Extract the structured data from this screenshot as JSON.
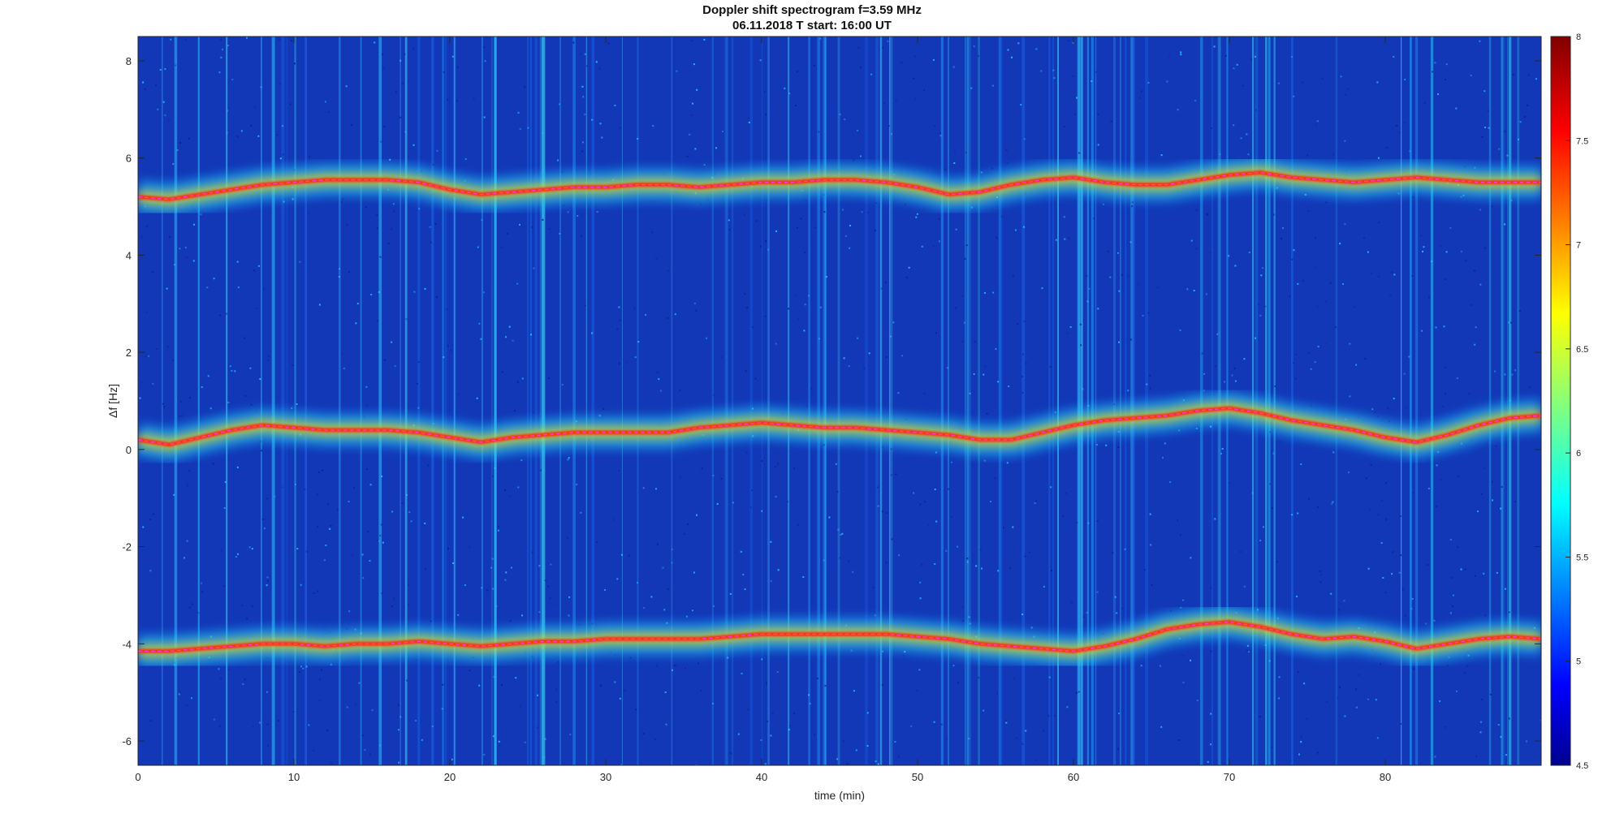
{
  "chart_data": {
    "type": "heatmap",
    "title": "Doppler shift spectrogram f=3.59 MHz",
    "subtitle": "06.11.2018   T start: 16:00 UT",
    "xlabel": "time (min)",
    "ylabel": "Δf [Hz]",
    "xlim": [
      0,
      90
    ],
    "ylim": [
      -6.5,
      8.5
    ],
    "xticks": [
      0,
      10,
      20,
      30,
      40,
      50,
      60,
      70,
      80
    ],
    "yticks": [
      -6,
      -4,
      -2,
      0,
      2,
      4,
      6,
      8
    ],
    "colorbar": {
      "ticks": [
        4.5,
        5,
        5.5,
        6,
        6.5,
        7,
        7.5,
        8
      ],
      "range": [
        4.5,
        8
      ],
      "colormap": "jet",
      "position": "right"
    },
    "background_color": "#1238b8",
    "grid": false,
    "series": [
      {
        "band": "upper",
        "x": [
          0,
          2,
          4,
          6,
          8,
          10,
          12,
          14,
          16,
          18,
          20,
          22,
          24,
          26,
          28,
          30,
          32,
          34,
          36,
          38,
          40,
          42,
          44,
          46,
          48,
          50,
          52,
          54,
          56,
          58,
          60,
          62,
          64,
          66,
          68,
          70,
          72,
          74,
          76,
          78,
          80,
          82,
          84,
          86,
          88,
          90
        ],
        "y": [
          5.2,
          5.15,
          5.25,
          5.35,
          5.45,
          5.5,
          5.55,
          5.55,
          5.55,
          5.5,
          5.35,
          5.25,
          5.3,
          5.35,
          5.4,
          5.4,
          5.45,
          5.45,
          5.4,
          5.45,
          5.5,
          5.5,
          5.55,
          5.55,
          5.5,
          5.4,
          5.25,
          5.3,
          5.45,
          5.55,
          5.6,
          5.5,
          5.45,
          5.45,
          5.55,
          5.65,
          5.7,
          5.6,
          5.55,
          5.5,
          5.55,
          5.6,
          5.55,
          5.5,
          5.5,
          5.5
        ]
      },
      {
        "band": "middle",
        "x": [
          0,
          2,
          4,
          6,
          8,
          10,
          12,
          14,
          16,
          18,
          20,
          22,
          24,
          26,
          28,
          30,
          32,
          34,
          36,
          38,
          40,
          42,
          44,
          46,
          48,
          50,
          52,
          54,
          56,
          58,
          60,
          62,
          64,
          66,
          68,
          70,
          72,
          74,
          76,
          78,
          80,
          82,
          84,
          86,
          88,
          90
        ],
        "y": [
          0.2,
          0.1,
          0.25,
          0.4,
          0.5,
          0.45,
          0.4,
          0.4,
          0.4,
          0.35,
          0.25,
          0.15,
          0.25,
          0.3,
          0.35,
          0.35,
          0.35,
          0.35,
          0.45,
          0.5,
          0.55,
          0.5,
          0.45,
          0.45,
          0.4,
          0.35,
          0.3,
          0.2,
          0.2,
          0.35,
          0.5,
          0.6,
          0.65,
          0.7,
          0.8,
          0.85,
          0.75,
          0.6,
          0.5,
          0.4,
          0.25,
          0.15,
          0.3,
          0.5,
          0.65,
          0.7
        ]
      },
      {
        "band": "lower",
        "x": [
          0,
          2,
          4,
          6,
          8,
          10,
          12,
          14,
          16,
          18,
          20,
          22,
          24,
          26,
          28,
          30,
          32,
          34,
          36,
          38,
          40,
          42,
          44,
          46,
          48,
          50,
          52,
          54,
          56,
          58,
          60,
          62,
          64,
          66,
          68,
          70,
          72,
          74,
          76,
          78,
          80,
          82,
          84,
          86,
          88,
          90
        ],
        "y": [
          -4.15,
          -4.15,
          -4.1,
          -4.05,
          -4.0,
          -4.0,
          -4.05,
          -4.0,
          -4.0,
          -3.95,
          -4.0,
          -4.05,
          -4.0,
          -3.95,
          -3.95,
          -3.9,
          -3.9,
          -3.9,
          -3.9,
          -3.85,
          -3.8,
          -3.8,
          -3.8,
          -3.8,
          -3.8,
          -3.85,
          -3.9,
          -4.0,
          -4.05,
          -4.1,
          -4.15,
          -4.05,
          -3.9,
          -3.7,
          -3.6,
          -3.55,
          -3.65,
          -3.8,
          -3.9,
          -3.85,
          -3.95,
          -4.1,
          -4.0,
          -3.9,
          -3.85,
          -3.9
        ]
      }
    ]
  }
}
